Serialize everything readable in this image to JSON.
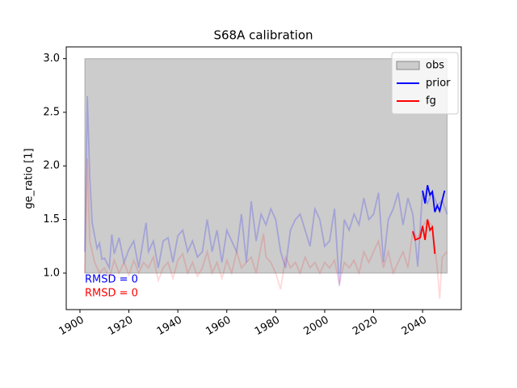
{
  "chart_data": {
    "type": "line",
    "title": "S68A calibration",
    "ylabel": "ge_ratio [1]",
    "xlim": [
      1894.4,
      2055.8
    ],
    "ylim": [
      0.66,
      3.11
    ],
    "xticks": [
      1900,
      1920,
      1940,
      1960,
      1980,
      2000,
      2020,
      2040
    ],
    "yticks": [
      {
        "value": 1,
        "label": "1.0"
      },
      1.5,
      {
        "value": 2,
        "label": "2.0"
      },
      2.5,
      {
        "value": 3,
        "label": "3.0"
      }
    ],
    "legend": "upper right",
    "obs": {
      "name": "obs",
      "color": "#cccccc",
      "x": [
        1902,
        2050
      ],
      "lower": [
        1,
        1
      ],
      "upper": [
        3,
        3
      ]
    },
    "series": [
      {
        "color": "#0000ff",
        "alpha": 0.2,
        "x": [
          1902,
          1903,
          1904,
          1905,
          1906,
          1907,
          1908,
          1909,
          1910,
          1912,
          1913,
          1914,
          1916,
          1918,
          1920,
          1922,
          1924,
          1926,
          1927,
          1928,
          1930,
          1932,
          1934,
          1936,
          1938,
          1940,
          1942,
          1944,
          1946,
          1948,
          1950,
          1952,
          1954,
          1956,
          1958,
          1960,
          1962,
          1964,
          1966,
          1968,
          1970,
          1972,
          1974,
          1976,
          1978,
          1980,
          1982,
          1984,
          1986,
          1988,
          1990,
          1992,
          1994,
          1996,
          1998,
          2000,
          2002,
          2004,
          2006,
          2008,
          2010,
          2012,
          2014,
          2016,
          2018,
          2020,
          2022,
          2024,
          2026,
          2028,
          2030,
          2032,
          2034,
          2036,
          2038,
          2040,
          2042,
          2044,
          2046,
          2048,
          2050
        ],
        "values": [
          1.2,
          2.65,
          1.9,
          1.47,
          1.35,
          1.23,
          1.28,
          1.13,
          1.14,
          1.05,
          1.36,
          1.18,
          1.33,
          1.1,
          1.22,
          1.3,
          1.05,
          1.33,
          1.47,
          1.2,
          1.3,
          1.05,
          1.3,
          1.33,
          1.1,
          1.35,
          1.4,
          1.2,
          1.3,
          1.15,
          1.2,
          1.5,
          1.2,
          1.4,
          1.1,
          1.4,
          1.3,
          1.2,
          1.55,
          1.1,
          1.67,
          1.3,
          1.55,
          1.45,
          1.6,
          1.5,
          1.2,
          1.05,
          1.4,
          1.5,
          1.55,
          1.4,
          1.25,
          1.6,
          1.5,
          1.25,
          1.3,
          1.6,
          0.88,
          1.5,
          1.4,
          1.55,
          1.45,
          1.7,
          1.5,
          1.55,
          1.75,
          1.1,
          1.5,
          1.6,
          1.75,
          1.45,
          1.7,
          1.55,
          1.06,
          1.77,
          1.65,
          1.76,
          1.63,
          1.68,
          1.55
        ]
      },
      {
        "color": "#ff0000",
        "alpha": 0.15,
        "x": [
          1902,
          1903,
          1904,
          1906,
          1908,
          1910,
          1912,
          1914,
          1916,
          1918,
          1920,
          1922,
          1924,
          1926,
          1928,
          1930,
          1932,
          1934,
          1936,
          1938,
          1940,
          1942,
          1944,
          1946,
          1948,
          1950,
          1952,
          1954,
          1956,
          1958,
          1960,
          1962,
          1964,
          1966,
          1968,
          1970,
          1972,
          1974,
          1975,
          1976,
          1978,
          1980,
          1982,
          1984,
          1986,
          1988,
          1990,
          1992,
          1994,
          1996,
          1998,
          2000,
          2002,
          2004,
          2006,
          2008,
          2010,
          2012,
          2014,
          2016,
          2018,
          2020,
          2022,
          2024,
          2026,
          2028,
          2030,
          2032,
          2034,
          2036,
          2038,
          2040,
          2042,
          2044,
          2046,
          2047,
          2048,
          2050
        ],
        "values": [
          1.0,
          2.07,
          1.3,
          1.1,
          1.0,
          1.05,
          0.95,
          1.12,
          1.0,
          1.1,
          0.98,
          1.12,
          1.0,
          1.1,
          1.05,
          1.15,
          0.93,
          1.05,
          1.1,
          0.95,
          1.12,
          1.18,
          1.0,
          1.1,
          0.97,
          1.05,
          1.2,
          1.0,
          1.1,
          0.95,
          1.12,
          1.0,
          1.2,
          1.05,
          1.1,
          1.15,
          1.0,
          1.25,
          1.37,
          1.15,
          1.1,
          1.0,
          0.85,
          1.15,
          1.05,
          1.1,
          1.0,
          1.15,
          1.05,
          1.1,
          1.0,
          1.1,
          1.05,
          1.12,
          0.9,
          1.1,
          1.05,
          1.12,
          1.0,
          1.2,
          1.1,
          1.2,
          1.3,
          1.05,
          1.2,
          1.0,
          1.1,
          1.2,
          1.05,
          1.39,
          1.32,
          1.44,
          1.5,
          1.43,
          1.05,
          0.76,
          1.15,
          1.2
        ]
      },
      {
        "name": "prior",
        "color": "#0000ff",
        "alpha": 1,
        "x": [
          2040,
          2041,
          2042,
          2043,
          2044,
          2045,
          2046,
          2047,
          2048,
          2049
        ],
        "values": [
          1.77,
          1.65,
          1.82,
          1.73,
          1.76,
          1.57,
          1.63,
          1.58,
          1.68,
          1.77
        ]
      },
      {
        "name": "fg",
        "color": "#ff0000",
        "alpha": 1,
        "x": [
          2036,
          2037,
          2038,
          2039,
          2040,
          2041,
          2042,
          2043,
          2044,
          2045
        ],
        "values": [
          1.39,
          1.31,
          1.32,
          1.33,
          1.44,
          1.31,
          1.5,
          1.4,
          1.43,
          1.18
        ]
      }
    ],
    "annotations": [
      {
        "text": "RMSD = 0",
        "color": "#0000ff"
      },
      {
        "text": "RMSD = 0",
        "color": "#ff0000"
      }
    ]
  }
}
